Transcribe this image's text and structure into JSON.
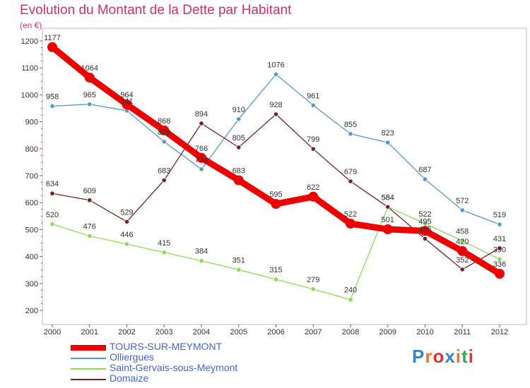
{
  "title": "Evolution du Montant de la Dette par Habitant",
  "subtitle": "(en €)",
  "logo": "Proxiti",
  "chart_data": {
    "type": "line",
    "title": "Evolution du Montant de la Dette par Habitant",
    "ylabel": "(en €)",
    "x": [
      2000,
      2001,
      2002,
      2003,
      2004,
      2005,
      2006,
      2007,
      2008,
      2009,
      2010,
      2011,
      2012
    ],
    "ylim": [
      200,
      1200
    ],
    "yticks": [
      200,
      300,
      400,
      500,
      600,
      700,
      800,
      900,
      1000,
      1100,
      1200
    ],
    "grid": false,
    "legend_placement": "bottom-left",
    "series": [
      {
        "name": "TOURS-SUR-MEYMONT",
        "color": "#ee0000",
        "values": [
          1177,
          1064,
          964,
          868,
          766,
          683,
          595,
          622,
          522,
          501,
          495,
          420,
          336
        ]
      },
      {
        "name": "Olliergues",
        "color": "#5599cc",
        "values": [
          958,
          965,
          941,
          826,
          724,
          910,
          1076,
          961,
          855,
          823,
          687,
          572,
          519
        ]
      },
      {
        "name": "Saint-Gervais-sous-Meymont",
        "color": "#88dd55",
        "values": [
          520,
          476,
          446,
          415,
          384,
          351,
          315,
          279,
          240,
          584,
          522,
          458,
          390
        ]
      },
      {
        "name": "Domaize",
        "color": "#772222",
        "values": [
          634,
          609,
          529,
          683,
          894,
          805,
          928,
          799,
          679,
          584,
          466,
          352,
          431
        ]
      }
    ]
  }
}
